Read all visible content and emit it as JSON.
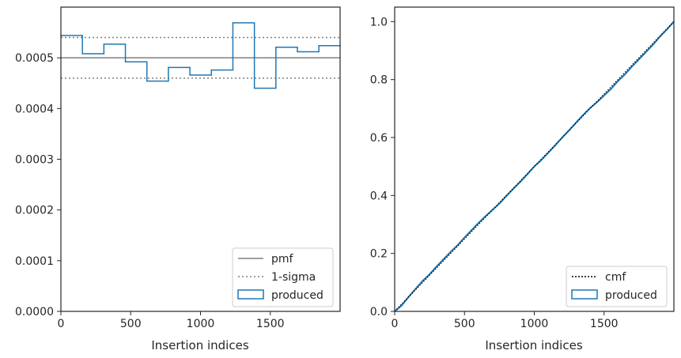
{
  "chart_data": [
    {
      "type": "histogram",
      "xlabel": "Insertion indices",
      "ylabel": "",
      "xlim": [
        0,
        2000
      ],
      "ylim": [
        0,
        0.0006
      ],
      "xticks": [
        "0",
        "500",
        "1000",
        "1500"
      ],
      "yticks": [
        "0.0000",
        "0.0001",
        "0.0002",
        "0.0003",
        "0.0004",
        "0.0005"
      ],
      "grid": false,
      "legend_position": "lower right",
      "legend": [
        "pmf",
        "1-sigma",
        "produced"
      ],
      "colors": {
        "pmf": "#808080",
        "sigma": "#808080",
        "produced": "#1f77b4"
      },
      "pmf": 0.0005,
      "sigma": [
        0.00046,
        0.00054
      ],
      "bin_edges": [
        0,
        154,
        308,
        462,
        616,
        770,
        924,
        1078,
        1232,
        1386,
        1540,
        1694,
        1848,
        2002
      ],
      "produced": [
        0.000544,
        0.000508,
        0.000527,
        0.000492,
        0.000454,
        0.000481,
        0.000466,
        0.000476,
        0.000569,
        0.00044,
        0.000521,
        0.000512,
        0.000524
      ]
    },
    {
      "type": "line",
      "xlabel": "Insertion indices",
      "ylabel": "",
      "xlim": [
        0,
        2000
      ],
      "ylim": [
        0,
        1.05
      ],
      "xticks": [
        "0",
        "500",
        "1000",
        "1500"
      ],
      "yticks": [
        "0.0",
        "0.2",
        "0.4",
        "0.6",
        "0.8",
        "1.0"
      ],
      "grid": false,
      "legend_position": "lower right",
      "legend": [
        "cmf",
        "produced"
      ],
      "colors": {
        "cmf": "#000000",
        "produced": "#1f77b4"
      },
      "cmf": {
        "x": [
          0,
          2000
        ],
        "y": [
          0,
          1.0
        ]
      },
      "produced": {
        "x": [
          0,
          50,
          100,
          150,
          200,
          250,
          300,
          350,
          400,
          450,
          500,
          550,
          600,
          650,
          700,
          750,
          800,
          850,
          900,
          950,
          1000,
          1050,
          1100,
          1150,
          1200,
          1250,
          1300,
          1350,
          1400,
          1450,
          1500,
          1550,
          1600,
          1650,
          1700,
          1750,
          1800,
          1850,
          1900,
          1950,
          2000
        ],
        "y": [
          0,
          0.02,
          0.05,
          0.078,
          0.105,
          0.128,
          0.155,
          0.18,
          0.205,
          0.228,
          0.255,
          0.28,
          0.305,
          0.328,
          0.35,
          0.372,
          0.398,
          0.423,
          0.447,
          0.473,
          0.5,
          0.522,
          0.547,
          0.573,
          0.6,
          0.625,
          0.652,
          0.678,
          0.702,
          0.722,
          0.745,
          0.768,
          0.795,
          0.818,
          0.845,
          0.87,
          0.895,
          0.92,
          0.948,
          0.973,
          1.0
        ]
      }
    }
  ]
}
